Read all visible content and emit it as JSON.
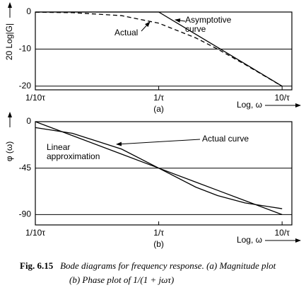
{
  "chart_data": [
    {
      "type": "line",
      "xscale": "log",
      "grid": true,
      "ylabel": "20 Log|G|",
      "xlabel": "Log, ω",
      "panel_label": "(a)",
      "x": [
        0.1,
        0.2,
        0.5,
        1,
        2,
        3,
        5,
        10
      ],
      "xlim": [
        0.1,
        12
      ],
      "ylim": [
        -21,
        0
      ],
      "xticks": [
        {
          "value": 0.1,
          "label": "1/10τ"
        },
        {
          "value": 1,
          "label": "1/τ"
        },
        {
          "value": 10,
          "label": "10/τ"
        }
      ],
      "yticks": [
        0,
        -10,
        -20
      ],
      "series": [
        {
          "name": "Asymptotive curve",
          "color": "#000000",
          "dash": false,
          "values": [
            0,
            0,
            0,
            0,
            -6.02,
            -9.54,
            -13.98,
            -20
          ]
        },
        {
          "name": "Actual",
          "color": "#000000",
          "dash": true,
          "values": [
            -0.04,
            -0.17,
            -0.97,
            -3.01,
            -6.99,
            -10,
            -14.15,
            -20.04
          ]
        }
      ]
    },
    {
      "type": "line",
      "xscale": "log",
      "grid": true,
      "ylabel": "φ (ω)",
      "xlabel": "Log, ω",
      "panel_label": "(b)",
      "x": [
        0.1,
        0.2,
        0.5,
        1,
        2,
        3,
        5,
        10
      ],
      "xlim": [
        0.1,
        12
      ],
      "ylim": [
        -100,
        0
      ],
      "xticks": [
        {
          "value": 0.1,
          "label": "1/10τ"
        },
        {
          "value": 1,
          "label": "1/τ"
        },
        {
          "value": 10,
          "label": "10/τ"
        }
      ],
      "yticks": [
        0,
        -45,
        -90
      ],
      "series": [
        {
          "name": "Actual curve",
          "color": "#000000",
          "dash": false,
          "values": [
            -5.71,
            -11.31,
            -26.57,
            -45,
            -63.43,
            -71.57,
            -78.69,
            -84.29
          ]
        },
        {
          "name": "Linear approximation",
          "color": "#000000",
          "dash": false,
          "values": [
            0,
            -13.55,
            -31.45,
            -45,
            -58.55,
            -66.47,
            -76.45,
            -90
          ]
        }
      ]
    }
  ],
  "caption": {
    "label": "Fig. 6.15",
    "line1": "Bode diagrams for frequency response. (a) Magnitude plot",
    "line2": "(b) Phase plot of 1/(1 + jωτ)"
  }
}
